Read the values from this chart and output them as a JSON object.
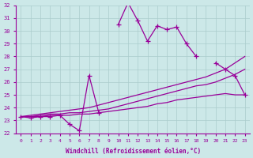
{
  "xlabel": "Windchill (Refroidissement éolien,°C)",
  "background_color": "#cce8e8",
  "grid_color": "#aacccc",
  "line_color": "#990099",
  "hours": [
    0,
    1,
    2,
    3,
    4,
    5,
    6,
    7,
    8,
    9,
    10,
    11,
    12,
    13,
    14,
    15,
    16,
    17,
    18,
    19,
    20,
    21,
    22,
    23
  ],
  "temp": [
    23.3,
    23.2,
    23.3,
    23.3,
    23.4,
    22.7,
    22.2,
    26.5,
    23.6,
    null,
    30.5,
    32.2,
    30.8,
    29.2,
    30.4,
    30.1,
    30.3,
    29.0,
    28.0,
    null,
    27.5,
    27.0,
    26.5,
    25.0
  ],
  "line2": [
    23.3,
    23.4,
    23.5,
    23.6,
    23.7,
    23.8,
    23.9,
    24.0,
    24.2,
    24.4,
    24.6,
    24.8,
    25.0,
    25.2,
    25.4,
    25.6,
    25.8,
    26.0,
    26.2,
    26.4,
    26.7,
    27.0,
    27.5,
    28.0
  ],
  "line3": [
    23.3,
    23.3,
    23.4,
    23.5,
    23.5,
    23.6,
    23.6,
    23.7,
    23.8,
    23.9,
    24.1,
    24.3,
    24.5,
    24.7,
    24.9,
    25.1,
    25.3,
    25.5,
    25.7,
    25.8,
    26.0,
    26.3,
    26.6,
    27.0
  ],
  "line4": [
    23.3,
    23.3,
    23.3,
    23.4,
    23.4,
    23.4,
    23.5,
    23.5,
    23.6,
    23.7,
    23.8,
    23.9,
    24.0,
    24.1,
    24.3,
    24.4,
    24.6,
    24.7,
    24.8,
    24.9,
    25.0,
    25.1,
    25.0,
    25.0
  ],
  "ylim": [
    22,
    32
  ],
  "yticks": [
    22,
    23,
    24,
    25,
    26,
    27,
    28,
    29,
    30,
    31,
    32
  ]
}
